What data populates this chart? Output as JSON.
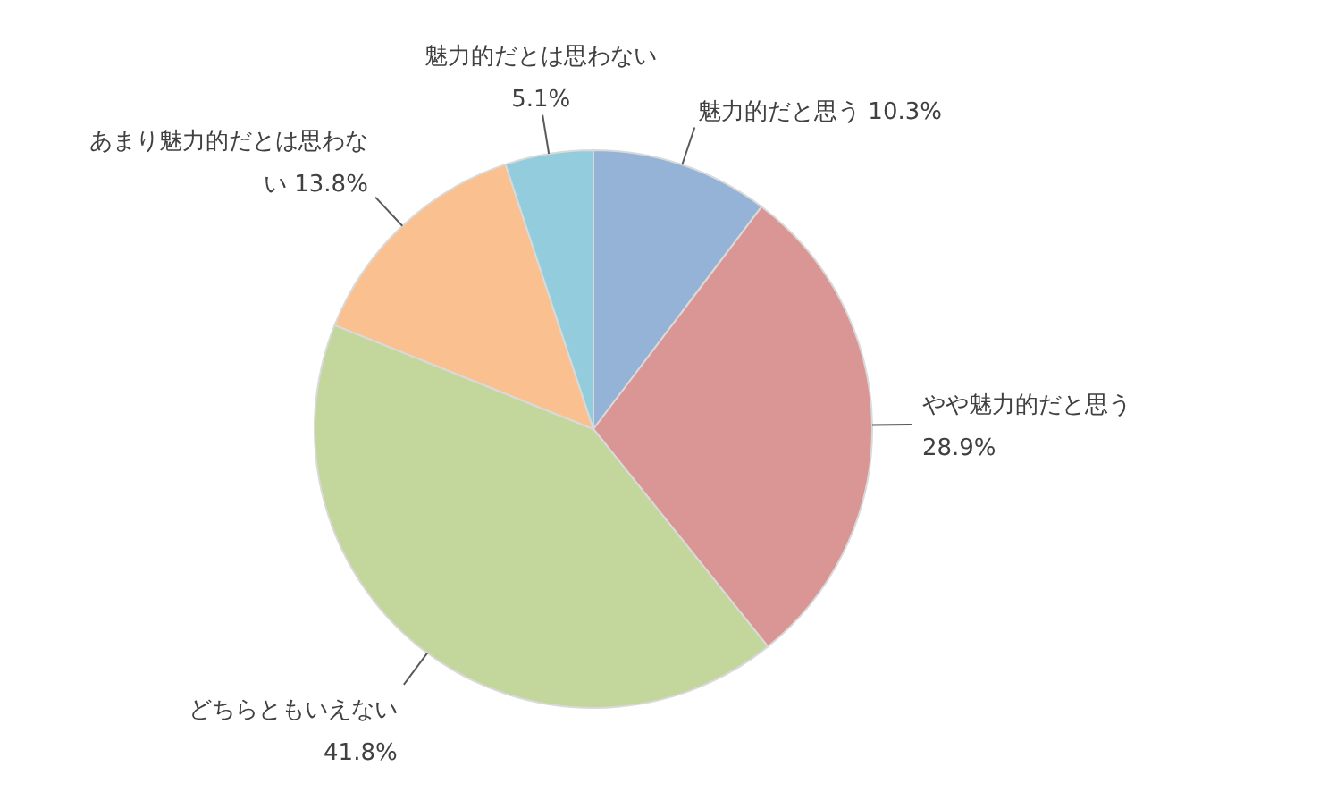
{
  "chart_data": {
    "type": "pie",
    "categories": [
      "魅力的だと思う",
      "やや魅力的だと思う",
      "どちらともいえない",
      "あまり魅力的だとは思わない",
      "魅力的だとは思わない"
    ],
    "values": [
      10.3,
      28.9,
      41.8,
      13.8,
      5.1
    ],
    "value_labels": [
      "10.3%",
      "28.9%",
      "41.8%",
      "13.8%",
      "5.1%"
    ],
    "colors": [
      "#95b3d7",
      "#d99694",
      "#c3d69b",
      "#fac090",
      "#93cddd"
    ]
  }
}
